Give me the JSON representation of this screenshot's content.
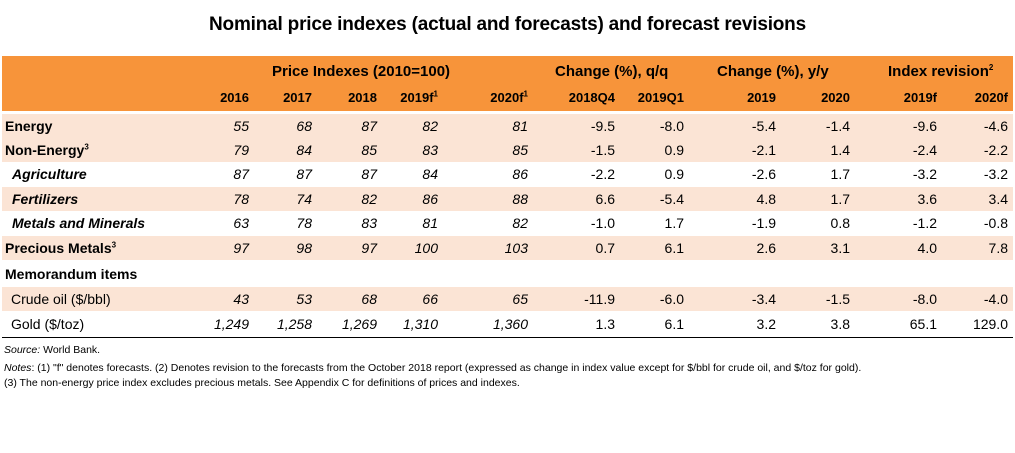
{
  "title": "Nominal price indexes (actual and forecasts) and forecast revisions",
  "groups": {
    "price_indexes": "Price Indexes (2010=100)",
    "change_qq": "Change (%), q/q",
    "change_yy": "Change (%), y/y",
    "index_revision": "Index revision",
    "index_revision_sup": "2"
  },
  "columns": [
    {
      "label": "2016",
      "sup": ""
    },
    {
      "label": "2017",
      "sup": ""
    },
    {
      "label": "2018",
      "sup": ""
    },
    {
      "label": "2019f",
      "sup": "1"
    },
    {
      "label": "2020f",
      "sup": "1"
    },
    {
      "label": "2018Q4",
      "sup": ""
    },
    {
      "label": "2019Q1",
      "sup": ""
    },
    {
      "label": "2019",
      "sup": ""
    },
    {
      "label": "2020",
      "sup": ""
    },
    {
      "label": "2019f",
      "sup": ""
    },
    {
      "label": "2020f",
      "sup": ""
    }
  ],
  "rows": [
    {
      "label": "Energy",
      "sup": "",
      "values": [
        "55",
        "68",
        "87",
        "82",
        "81",
        "-9.5",
        "-8.0",
        "-5.4",
        "-1.4",
        "-9.6",
        "-4.6"
      ]
    },
    {
      "label": "Non-Energy",
      "sup": "3",
      "values": [
        "79",
        "84",
        "85",
        "83",
        "85",
        "-1.5",
        "0.9",
        "-2.1",
        "1.4",
        "-2.4",
        "-2.2"
      ]
    },
    {
      "label": "Agriculture",
      "sup": "",
      "values": [
        "87",
        "87",
        "87",
        "84",
        "86",
        "-2.2",
        "0.9",
        "-2.6",
        "1.7",
        "-3.2",
        "-3.2"
      ]
    },
    {
      "label": "Fertilizers",
      "sup": "",
      "values": [
        "78",
        "74",
        "82",
        "86",
        "88",
        "6.6",
        "-5.4",
        "4.8",
        "1.7",
        "3.6",
        "3.4"
      ]
    },
    {
      "label": "Metals and Minerals",
      "sup": "",
      "values": [
        "63",
        "78",
        "83",
        "81",
        "82",
        "-1.0",
        "1.7",
        "-1.9",
        "0.8",
        "-1.2",
        "-0.8"
      ]
    },
    {
      "label": "Precious Metals",
      "sup": "3",
      "values": [
        "97",
        "98",
        "97",
        "100",
        "103",
        "0.7",
        "6.1",
        "2.6",
        "3.1",
        "4.0",
        "7.8"
      ]
    },
    {
      "label": "Memorandum items",
      "sup": "",
      "values": [
        "",
        "",
        "",
        "",
        "",
        "",
        "",
        "",
        "",
        "",
        ""
      ]
    },
    {
      "label": "Crude oil ($/bbl)",
      "sup": "",
      "values": [
        "43",
        "53",
        "68",
        "66",
        "65",
        "-11.9",
        "-6.0",
        "-3.4",
        "-1.5",
        "-8.0",
        "-4.0"
      ]
    },
    {
      "label": "Gold ($/toz)",
      "sup": "",
      "values": [
        "1,249",
        "1,258",
        "1,269",
        "1,310",
        "1,360",
        "1.3",
        "6.1",
        "3.2",
        "3.8",
        "65.1",
        "129.0"
      ]
    }
  ],
  "notes": {
    "source_label": "Source:",
    "source_text": " World Bank.",
    "notes_label": "Notes",
    "notes_line1": ": (1) \"f\" denotes forecasts. (2) Denotes revision to the forecasts from the October 2018 report (expressed as change in index value except for $/bbl for crude oil, and $/toz for gold).",
    "notes_line2": "(3) The non-energy price index excludes precious metals. See Appendix C for definitions of prices and indexes."
  }
}
